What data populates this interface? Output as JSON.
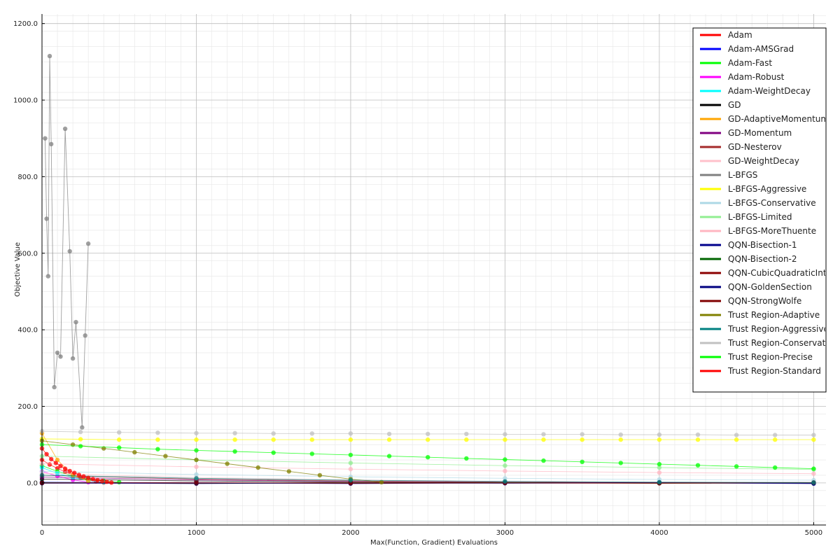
{
  "chart_data": {
    "type": "scatter",
    "title": "",
    "xlabel": "Max(Function, Gradient) Evaluations",
    "ylabel": "Objective Value",
    "xlim": [
      0,
      5080
    ],
    "ylim": [
      -110,
      1225
    ],
    "x_ticks": [
      0,
      1000,
      2000,
      3000,
      4000,
      5000
    ],
    "x_tick_labels": [
      "0",
      "1000",
      "2000",
      "3000",
      "4000",
      "5000"
    ],
    "y_ticks": [
      0,
      200,
      400,
      600,
      800,
      1000,
      1200
    ],
    "y_tick_labels": [
      "0.0",
      "200.0",
      "400.0",
      "600.0",
      "800.0",
      "1000.0",
      "1200.0"
    ],
    "grid": true,
    "minor_grid": true,
    "legend_position": "top-right",
    "series": [
      {
        "name": "Adam",
        "color": "#ff0000",
        "x": [
          0,
          50,
          100,
          150,
          200,
          250,
          300,
          350,
          400
        ],
        "y": [
          60,
          48,
          38,
          29,
          21,
          14,
          8,
          4,
          1
        ]
      },
      {
        "name": "Adam-AMSGrad",
        "color": "#0000ff",
        "x": [
          0,
          1000,
          2000,
          3000,
          4000,
          5000
        ],
        "y": [
          2,
          0,
          -1,
          1,
          0,
          -1
        ]
      },
      {
        "name": "Adam-Fast",
        "color": "#00ff00",
        "x": [
          0,
          100,
          200,
          300,
          400,
          500
        ],
        "y": [
          45,
          30,
          18,
          10,
          5,
          2
        ]
      },
      {
        "name": "Adam-Robust",
        "color": "#ff00ff",
        "x": [
          0,
          100,
          200,
          300
        ],
        "y": [
          30,
          18,
          8,
          2
        ]
      },
      {
        "name": "Adam-WeightDecay",
        "color": "#00ffff",
        "x": [
          0,
          100,
          200,
          300,
          400
        ],
        "y": [
          40,
          25,
          14,
          6,
          2
        ]
      },
      {
        "name": "GD",
        "color": "#000000",
        "x": [
          0,
          1000,
          2000,
          3000,
          4000,
          5000
        ],
        "y": [
          10,
          5,
          2,
          1,
          0,
          0
        ]
      },
      {
        "name": "GD-AdaptiveMomentum",
        "color": "#ffa500",
        "x": [
          0,
          100,
          200,
          300
        ],
        "y": [
          130,
          60,
          20,
          5
        ]
      },
      {
        "name": "GD-Momentum",
        "color": "#800080",
        "x": [
          0,
          1000,
          2000,
          3000,
          4000,
          5000
        ],
        "y": [
          15,
          8,
          4,
          2,
          1,
          0
        ]
      },
      {
        "name": "GD-Nesterov",
        "color": "#a52a2a",
        "x": [
          0,
          1000,
          2000,
          3000,
          4000,
          5000
        ],
        "y": [
          20,
          10,
          5,
          2,
          1,
          0
        ]
      },
      {
        "name": "GD-WeightDecay",
        "color": "#ffc0cb",
        "x": [
          0,
          1000,
          2000,
          3000,
          4000,
          5000
        ],
        "y": [
          25,
          14,
          8,
          4,
          2,
          1
        ]
      },
      {
        "name": "L-BFGS",
        "color": "#808080",
        "x": [
          20,
          30,
          40,
          50,
          60,
          80,
          100,
          120,
          150,
          180,
          200,
          220,
          260,
          280,
          300
        ],
        "y": [
          900,
          690,
          540,
          1115,
          885,
          250,
          340,
          330,
          925,
          605,
          325,
          420,
          145,
          385,
          625
        ]
      },
      {
        "name": "L-BFGS-Aggressive",
        "color": "#ffff00",
        "x": [
          0,
          250,
          500,
          750,
          1000,
          1250,
          1500,
          1750,
          2000,
          2250,
          2500,
          2750,
          3000,
          3250,
          3500,
          3750,
          4000,
          4250,
          4500,
          4750,
          5000
        ],
        "y": [
          115,
          114,
          113,
          113,
          113,
          113,
          113,
          113,
          113,
          113,
          113,
          113,
          113,
          113,
          113,
          113,
          113,
          113,
          113,
          113,
          113
        ]
      },
      {
        "name": "L-BFGS-Conservative",
        "color": "#add8e6",
        "x": [
          0,
          1000,
          2000,
          3000,
          4000,
          5000
        ],
        "y": [
          30,
          22,
          16,
          12,
          9,
          7
        ]
      },
      {
        "name": "L-BFGS-Limited",
        "color": "#90ee90",
        "x": [
          0,
          1000,
          2000,
          3000,
          4000,
          5000
        ],
        "y": [
          70,
          60,
          52,
          45,
          40,
          35
        ]
      },
      {
        "name": "L-BFGS-MoreThuente",
        "color": "#ffb6c1",
        "x": [
          0,
          1000,
          2000,
          3000,
          4000,
          5000
        ],
        "y": [
          50,
          42,
          36,
          31,
          27,
          24
        ]
      },
      {
        "name": "QQN-Bisection-1",
        "color": "#00008b",
        "x": [
          0,
          1000,
          2000,
          3000,
          4000,
          5000
        ],
        "y": [
          0,
          -2,
          0,
          -1,
          0,
          -2
        ]
      },
      {
        "name": "QQN-Bisection-2",
        "color": "#006400",
        "x": [
          0,
          1000,
          2000,
          3000,
          4000,
          5000
        ],
        "y": [
          1,
          -1,
          0,
          1,
          -1,
          0
        ]
      },
      {
        "name": "QQN-CubicQuadraticInterpolation",
        "color": "#8b0000",
        "x": [
          0,
          1000,
          2000,
          3000,
          4000,
          5000
        ],
        "y": [
          0,
          -1,
          1,
          0,
          -1,
          0
        ]
      },
      {
        "name": "QQN-GoldenSection",
        "color": "#000080",
        "x": [
          0,
          1000,
          2000,
          3000,
          4000,
          5000
        ],
        "y": [
          -1,
          0,
          -2,
          0,
          1,
          -1
        ]
      },
      {
        "name": "QQN-StrongWolfe",
        "color": "#800000",
        "x": [
          0,
          1000,
          2000,
          3000,
          4000,
          5000
        ],
        "y": [
          0,
          1,
          -1,
          0,
          0,
          1
        ]
      },
      {
        "name": "Trust Region-Adaptive",
        "color": "#808000",
        "x": [
          0,
          200,
          400,
          600,
          800,
          1000,
          1200,
          1400,
          1600,
          1800,
          2000,
          2200
        ],
        "y": [
          110,
          100,
          90,
          80,
          70,
          60,
          50,
          40,
          30,
          20,
          10,
          2
        ]
      },
      {
        "name": "Trust Region-Aggressive",
        "color": "#008080",
        "x": [
          0,
          1000,
          2000,
          3000,
          4000,
          5000
        ],
        "y": [
          20,
          12,
          7,
          4,
          2,
          1
        ]
      },
      {
        "name": "Trust Region-Conservative",
        "color": "#c0c0c0",
        "x": [
          0,
          250,
          500,
          750,
          1000,
          1250,
          1500,
          1750,
          2000,
          2250,
          2500,
          2750,
          3000,
          3250,
          3500,
          3750,
          4000,
          4250,
          4500,
          4750,
          5000
        ],
        "y": [
          135,
          133,
          132,
          131,
          130,
          130,
          129,
          129,
          129,
          128,
          128,
          128,
          127,
          127,
          127,
          126,
          126,
          126,
          125,
          125,
          125
        ]
      },
      {
        "name": "Trust Region-Precise",
        "color": "#00ff00",
        "x": [
          0,
          250,
          500,
          750,
          1000,
          1250,
          1500,
          1750,
          2000,
          2250,
          2500,
          2750,
          3000,
          3250,
          3500,
          3750,
          4000,
          4250,
          4500,
          4750,
          5000
        ],
        "y": [
          100,
          96,
          92,
          88,
          85,
          82,
          79,
          76,
          73,
          70,
          67,
          64,
          61,
          58,
          55,
          52,
          49,
          46,
          43,
          40,
          37
        ]
      },
      {
        "name": "Trust Region-Standard",
        "color": "#ff0000",
        "x": [
          0,
          30,
          60,
          90,
          120,
          150,
          180,
          210,
          240,
          270,
          300,
          330,
          360,
          390,
          420,
          450
        ],
        "y": [
          90,
          75,
          62,
          52,
          44,
          37,
          31,
          26,
          21,
          17,
          13,
          10,
          7,
          5,
          3,
          1
        ]
      }
    ]
  }
}
